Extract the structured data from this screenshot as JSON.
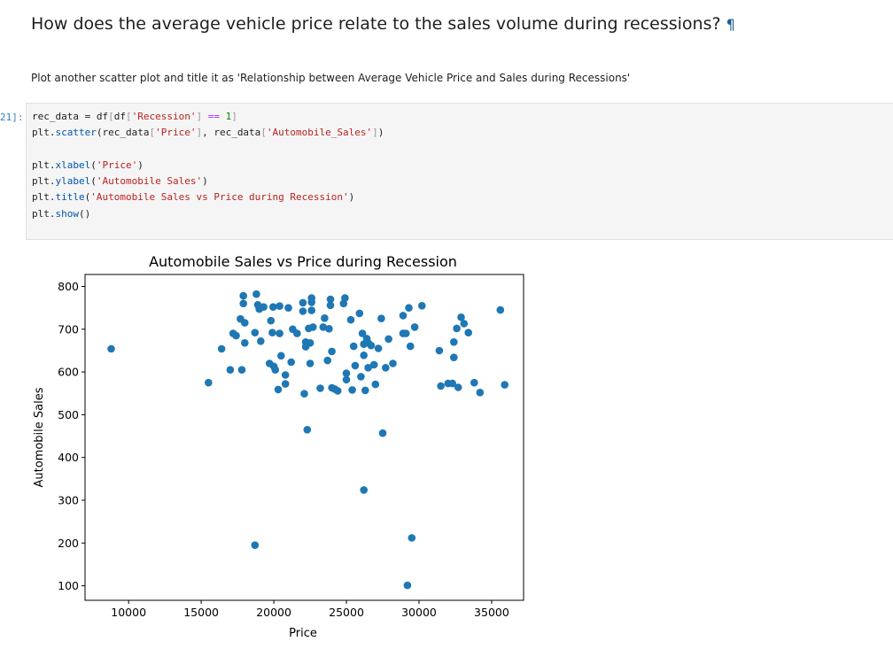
{
  "notebook": {
    "heading": "How does the average vehicle price relate to the sales volume during recessions?",
    "heading_anchor": "¶",
    "instruction": "Plot another scatter plot and title it as 'Relationship between Average Vehicle Price and Sales during Recessions'",
    "cell_prompt": "21]:",
    "code_lines": [
      "rec_data = df[df['Recession'] == 1]",
      "plt.scatter(rec_data['Price'], rec_data['Automobile_Sales'])",
      "",
      "plt.xlabel('Price')",
      "plt.ylabel('Automobile Sales')",
      "plt.title('Automobile Sales vs Price during Recession')",
      "plt.show()"
    ]
  },
  "chart_data": {
    "type": "scatter",
    "title": "Automobile Sales vs Price during Recession",
    "xlabel": "Price",
    "ylabel": "Automobile Sales",
    "xlim": [
      7000,
      37200
    ],
    "ylim": [
      66,
      828
    ],
    "xticks": [
      10000,
      15000,
      20000,
      25000,
      30000,
      35000
    ],
    "yticks": [
      100,
      200,
      300,
      400,
      500,
      600,
      700,
      800
    ],
    "grid": false,
    "color": "#1f77b4",
    "points": [
      [
        8800,
        654
      ],
      [
        15500,
        575
      ],
      [
        16400,
        654
      ],
      [
        17000,
        605
      ],
      [
        17200,
        690
      ],
      [
        17400,
        685
      ],
      [
        17700,
        724
      ],
      [
        17800,
        605
      ],
      [
        17900,
        778
      ],
      [
        17900,
        760
      ],
      [
        18000,
        715
      ],
      [
        18000,
        668
      ],
      [
        18700,
        195
      ],
      [
        18700,
        692
      ],
      [
        18800,
        782
      ],
      [
        18900,
        757
      ],
      [
        19000,
        747
      ],
      [
        19000,
        752
      ],
      [
        19100,
        672
      ],
      [
        19300,
        752
      ],
      [
        19700,
        620
      ],
      [
        19800,
        720
      ],
      [
        19900,
        692
      ],
      [
        19950,
        752
      ],
      [
        20000,
        613
      ],
      [
        20100,
        605
      ],
      [
        20300,
        559
      ],
      [
        20400,
        690
      ],
      [
        20400,
        754
      ],
      [
        20500,
        638
      ],
      [
        20800,
        593
      ],
      [
        20800,
        572
      ],
      [
        21000,
        750
      ],
      [
        21200,
        623
      ],
      [
        21300,
        700
      ],
      [
        21600,
        690
      ],
      [
        22000,
        762
      ],
      [
        22000,
        742
      ],
      [
        22100,
        549
      ],
      [
        22200,
        670
      ],
      [
        22200,
        659
      ],
      [
        22300,
        465
      ],
      [
        22400,
        702
      ],
      [
        22500,
        620
      ],
      [
        22500,
        668
      ],
      [
        22600,
        773
      ],
      [
        22600,
        763
      ],
      [
        22600,
        744
      ],
      [
        22700,
        705
      ],
      [
        23200,
        562
      ],
      [
        23400,
        705
      ],
      [
        23500,
        726
      ],
      [
        23700,
        627
      ],
      [
        23800,
        701
      ],
      [
        23900,
        770
      ],
      [
        23900,
        756
      ],
      [
        24000,
        648
      ],
      [
        24000,
        563
      ],
      [
        24200,
        560
      ],
      [
        24400,
        556
      ],
      [
        24800,
        760
      ],
      [
        24900,
        773
      ],
      [
        25000,
        582
      ],
      [
        25000,
        597
      ],
      [
        25300,
        722
      ],
      [
        25400,
        558
      ],
      [
        25500,
        660
      ],
      [
        25600,
        615
      ],
      [
        25900,
        737
      ],
      [
        26000,
        589
      ],
      [
        26100,
        690
      ],
      [
        26200,
        639
      ],
      [
        26200,
        665
      ],
      [
        26200,
        324
      ],
      [
        26300,
        557
      ],
      [
        26400,
        678
      ],
      [
        26500,
        668
      ],
      [
        26500,
        610
      ],
      [
        26700,
        662
      ],
      [
        26900,
        617
      ],
      [
        27000,
        571
      ],
      [
        27200,
        655
      ],
      [
        27400,
        725
      ],
      [
        27500,
        457
      ],
      [
        27700,
        610
      ],
      [
        27900,
        677
      ],
      [
        28200,
        620
      ],
      [
        28900,
        732
      ],
      [
        28900,
        690
      ],
      [
        29100,
        690
      ],
      [
        29200,
        101
      ],
      [
        29300,
        750
      ],
      [
        29400,
        660
      ],
      [
        29500,
        212
      ],
      [
        29700,
        705
      ],
      [
        30200,
        755
      ],
      [
        31400,
        650
      ],
      [
        31500,
        567
      ],
      [
        32000,
        573
      ],
      [
        32300,
        573
      ],
      [
        32400,
        670
      ],
      [
        32400,
        634
      ],
      [
        32600,
        702
      ],
      [
        32700,
        564
      ],
      [
        32900,
        728
      ],
      [
        33100,
        713
      ],
      [
        33400,
        692
      ],
      [
        33800,
        575
      ],
      [
        34200,
        552
      ],
      [
        35600,
        745
      ],
      [
        35900,
        570
      ]
    ]
  }
}
